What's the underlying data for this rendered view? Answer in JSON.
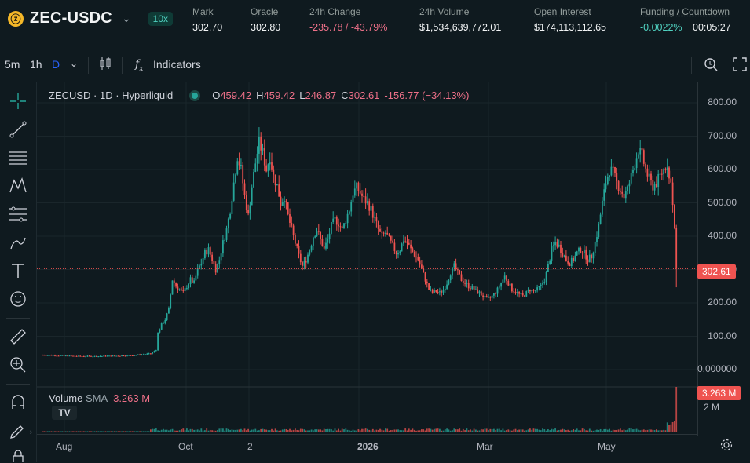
{
  "header": {
    "pair": "ZEC-USDC",
    "coin_glyph": "ⓩ",
    "leverage": "10x",
    "stats": [
      {
        "label": "Mark",
        "value": "302.70",
        "tone": "normal"
      },
      {
        "label": "Oracle",
        "value": "302.80",
        "tone": "normal"
      },
      {
        "label": "24h Change",
        "value": "-235.78 / -43.79%",
        "tone": "neg"
      },
      {
        "label": "24h Volume",
        "value": "$1,534,639,772.01",
        "tone": "normal"
      },
      {
        "label": "Open Interest",
        "value": "$174,113,112.65",
        "tone": "normal"
      },
      {
        "label": "Funding / Countdown",
        "value_left": "-0.0022%",
        "value_right": "00:05:27",
        "tone": "pos"
      }
    ]
  },
  "toolbar": {
    "timeframes": [
      "5m",
      "1h",
      "D"
    ],
    "active_timeframe": "D",
    "indicators_label": "Indicators"
  },
  "legend": {
    "symbol": "ZECUSD · 1D · Hyperliquid",
    "o_label": "O",
    "o_value": "459.42",
    "h_label": "H",
    "h_value": "459.42",
    "l_label": "L",
    "l_value": "246.87",
    "c_label": "C",
    "c_value": "302.61",
    "change": "-156.77 (−34.13%)"
  },
  "volume": {
    "label": "Volume",
    "sma_label": "SMA",
    "sma_value": "3.263 M",
    "badge": "3.263 M",
    "axis_label": "2 M"
  },
  "price_badge": "302.61",
  "colors": {
    "up": "#26a69a",
    "down": "#ef5350",
    "bg": "#0f1a1f",
    "accent": "#50d2c1"
  },
  "chart_data": {
    "type": "candlestick",
    "y_ticks": [
      "800.00",
      "700.00",
      "600.00",
      "500.00",
      "400.00",
      "300.00",
      "200.00",
      "100.00",
      "0.000000"
    ],
    "ylim": [
      0,
      800
    ],
    "x_ticks": [
      "Aug",
      "Oct",
      "2",
      "2026",
      "Mar",
      "May"
    ],
    "last_price": 302.61,
    "close_path": [
      [
        0,
        44
      ],
      [
        10,
        42
      ],
      [
        20,
        40
      ],
      [
        30,
        40
      ],
      [
        40,
        41
      ],
      [
        50,
        43
      ],
      [
        55,
        45
      ],
      [
        60,
        48
      ],
      [
        63,
        60
      ],
      [
        64,
        110
      ],
      [
        66,
        135
      ],
      [
        68,
        150
      ],
      [
        70,
        180
      ],
      [
        72,
        270
      ],
      [
        74,
        250
      ],
      [
        76,
        240
      ],
      [
        78,
        230
      ],
      [
        80,
        250
      ],
      [
        82,
        270
      ],
      [
        84,
        260
      ],
      [
        86,
        300
      ],
      [
        88,
        320
      ],
      [
        90,
        350
      ],
      [
        92,
        360
      ],
      [
        94,
        330
      ],
      [
        96,
        300
      ],
      [
        98,
        330
      ],
      [
        100,
        380
      ],
      [
        102,
        420
      ],
      [
        104,
        480
      ],
      [
        106,
        560
      ],
      [
        108,
        640
      ],
      [
        110,
        600
      ],
      [
        112,
        520
      ],
      [
        114,
        460
      ],
      [
        116,
        550
      ],
      [
        118,
        620
      ],
      [
        120,
        680
      ],
      [
        122,
        650
      ],
      [
        124,
        600
      ],
      [
        126,
        640
      ],
      [
        128,
        580
      ],
      [
        130,
        550
      ],
      [
        132,
        500
      ],
      [
        134,
        520
      ],
      [
        136,
        460
      ],
      [
        138,
        420
      ],
      [
        140,
        380
      ],
      [
        142,
        340
      ],
      [
        144,
        310
      ],
      [
        146,
        330
      ],
      [
        148,
        360
      ],
      [
        150,
        400
      ],
      [
        152,
        420
      ],
      [
        154,
        390
      ],
      [
        156,
        360
      ],
      [
        158,
        390
      ],
      [
        160,
        430
      ],
      [
        162,
        450
      ],
      [
        164,
        440
      ],
      [
        166,
        420
      ],
      [
        168,
        450
      ],
      [
        170,
        480
      ],
      [
        172,
        530
      ],
      [
        174,
        545
      ],
      [
        176,
        530
      ],
      [
        178,
        510
      ],
      [
        180,
        500
      ],
      [
        182,
        480
      ],
      [
        184,
        450
      ],
      [
        186,
        420
      ],
      [
        188,
        400
      ],
      [
        190,
        410
      ],
      [
        192,
        390
      ],
      [
        194,
        370
      ],
      [
        196,
        350
      ],
      [
        198,
        360
      ],
      [
        200,
        390
      ],
      [
        202,
        380
      ],
      [
        204,
        360
      ],
      [
        206,
        345
      ],
      [
        208,
        330
      ],
      [
        210,
        300
      ],
      [
        212,
        270
      ],
      [
        214,
        240
      ],
      [
        216,
        230
      ],
      [
        218,
        235
      ],
      [
        220,
        230
      ],
      [
        222,
        240
      ],
      [
        224,
        260
      ],
      [
        226,
        290
      ],
      [
        228,
        310
      ],
      [
        230,
        290
      ],
      [
        232,
        270
      ],
      [
        234,
        260
      ],
      [
        236,
        250
      ],
      [
        238,
        245
      ],
      [
        240,
        235
      ],
      [
        242,
        230
      ],
      [
        244,
        220
      ],
      [
        246,
        210
      ],
      [
        248,
        215
      ],
      [
        250,
        225
      ],
      [
        252,
        240
      ],
      [
        254,
        260
      ],
      [
        256,
        280
      ],
      [
        258,
        260
      ],
      [
        260,
        240
      ],
      [
        262,
        235
      ],
      [
        264,
        225
      ],
      [
        266,
        220
      ],
      [
        268,
        230
      ],
      [
        270,
        240
      ],
      [
        272,
        235
      ],
      [
        274,
        240
      ],
      [
        276,
        250
      ],
      [
        278,
        270
      ],
      [
        280,
        310
      ],
      [
        282,
        360
      ],
      [
        284,
        380
      ],
      [
        286,
        370
      ],
      [
        288,
        350
      ],
      [
        290,
        330
      ],
      [
        292,
        320
      ],
      [
        294,
        330
      ],
      [
        296,
        350
      ],
      [
        298,
        360
      ],
      [
        300,
        350
      ],
      [
        302,
        330
      ],
      [
        304,
        340
      ],
      [
        306,
        380
      ],
      [
        308,
        430
      ],
      [
        310,
        500
      ],
      [
        312,
        560
      ],
      [
        314,
        600
      ],
      [
        316,
        590
      ],
      [
        318,
        560
      ],
      [
        320,
        540
      ],
      [
        322,
        520
      ],
      [
        324,
        540
      ],
      [
        326,
        580
      ],
      [
        328,
        620
      ],
      [
        330,
        660
      ],
      [
        332,
        640
      ],
      [
        334,
        600
      ],
      [
        336,
        570
      ],
      [
        338,
        550
      ],
      [
        340,
        560
      ],
      [
        342,
        580
      ],
      [
        344,
        600
      ],
      [
        346,
        620
      ],
      [
        348,
        560
      ],
      [
        350,
        420
      ],
      [
        351,
        302.61
      ]
    ],
    "volume_spikes": [
      0.05,
      0.08,
      0.1,
      0.22,
      0.35,
      0.18,
      0.25,
      0.15,
      0.2,
      0.3,
      0.12,
      0.4,
      1.0
    ]
  }
}
